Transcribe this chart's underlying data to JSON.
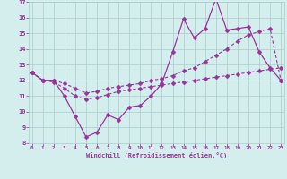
{
  "xlabel": "Windchill (Refroidissement éolien,°C)",
  "x": [
    0,
    1,
    2,
    3,
    4,
    5,
    6,
    7,
    8,
    9,
    10,
    11,
    12,
    13,
    14,
    15,
    16,
    17,
    18,
    19,
    20,
    21,
    22,
    23
  ],
  "line1": [
    12.5,
    12.0,
    12.0,
    11.0,
    9.7,
    8.4,
    8.7,
    9.8,
    9.5,
    10.3,
    10.4,
    11.0,
    11.8,
    13.8,
    15.9,
    14.7,
    15.3,
    17.2,
    15.2,
    15.3,
    15.4,
    13.8,
    12.8,
    12.0
  ],
  "line2": [
    12.5,
    12.0,
    12.0,
    11.8,
    11.5,
    11.2,
    11.3,
    11.5,
    11.6,
    11.7,
    11.8,
    12.0,
    12.1,
    12.3,
    12.6,
    12.8,
    13.2,
    13.6,
    14.0,
    14.5,
    14.9,
    15.1,
    15.3,
    12.0
  ],
  "line3": [
    12.5,
    12.0,
    11.9,
    11.5,
    11.0,
    10.8,
    10.9,
    11.1,
    11.3,
    11.4,
    11.5,
    11.6,
    11.7,
    11.8,
    11.9,
    12.0,
    12.1,
    12.2,
    12.3,
    12.4,
    12.5,
    12.6,
    12.7,
    12.8
  ],
  "ylim_min": 8,
  "ylim_max": 17,
  "xlim_min": 0,
  "xlim_max": 23,
  "yticks": [
    8,
    9,
    10,
    11,
    12,
    13,
    14,
    15,
    16,
    17
  ],
  "xticks": [
    0,
    1,
    2,
    3,
    4,
    5,
    6,
    7,
    8,
    9,
    10,
    11,
    12,
    13,
    14,
    15,
    16,
    17,
    18,
    19,
    20,
    21,
    22,
    23
  ],
  "line_color": "#993399",
  "bg_color": "#d4eeee",
  "grid_color": "#aacccc",
  "spine_color": "#7755aa"
}
